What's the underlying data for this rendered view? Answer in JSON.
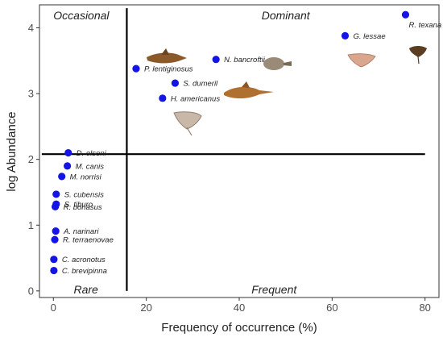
{
  "chart_data": {
    "type": "scatter",
    "xlabel": "Frequency of occurrence  (%)",
    "ylabel": "log Abundance",
    "xlim": [
      -3,
      83
    ],
    "ylim": [
      -0.1,
      4.35
    ],
    "x_ticks": [
      0,
      20,
      40,
      60,
      80
    ],
    "y_ticks": [
      0,
      1,
      2,
      3,
      4
    ],
    "grid": false,
    "marker_color": "#1414e6",
    "quadrant_lines": {
      "x": 15.8,
      "y": 2.08
    },
    "quadrant_labels": {
      "top_left": "Occasional",
      "top_right": "Dominant",
      "bottom_left": "Rare",
      "bottom_right": "Frequent"
    },
    "points": [
      {
        "label": "R. texana",
        "x": 75.8,
        "y": 4.2
      },
      {
        "label": "G. lessae",
        "x": 62.8,
        "y": 3.88
      },
      {
        "label": "N. bancroftii",
        "x": 35.0,
        "y": 3.52
      },
      {
        "label": "P. lentiginosus",
        "x": 17.8,
        "y": 3.38
      },
      {
        "label": "S. dumeril",
        "x": 26.2,
        "y": 3.16
      },
      {
        "label": "H. americanus",
        "x": 23.5,
        "y": 2.93
      },
      {
        "label": "D. olseni",
        "x": 3.2,
        "y": 2.1
      },
      {
        "label": "M. canis",
        "x": 3.0,
        "y": 1.9
      },
      {
        "label": "M. norrisi",
        "x": 1.8,
        "y": 1.74
      },
      {
        "label": "S. cubensis",
        "x": 0.6,
        "y": 1.47
      },
      {
        "label": "S. tiburo",
        "x": 0.6,
        "y": 1.32
      },
      {
        "label": "R. bonasus",
        "x": 0.4,
        "y": 1.28
      },
      {
        "label": "A. narinari",
        "x": 0.5,
        "y": 0.91
      },
      {
        "label": "R. terraenovae",
        "x": 0.3,
        "y": 0.78
      },
      {
        "label": "C. acronotus",
        "x": 0.1,
        "y": 0.48
      },
      {
        "label": "C. brevipinna",
        "x": 0.1,
        "y": 0.31
      }
    ]
  }
}
